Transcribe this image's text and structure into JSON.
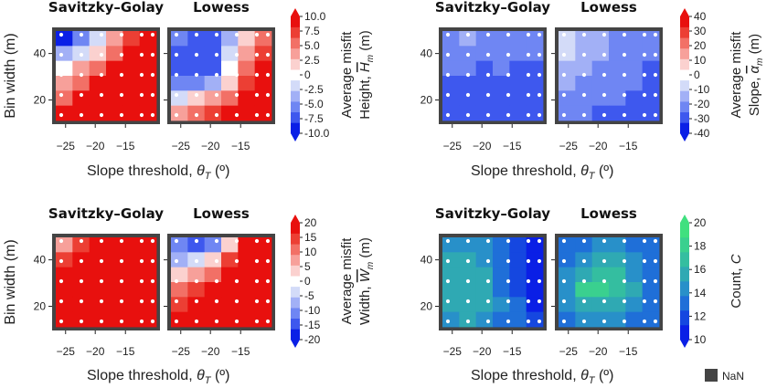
{
  "chart_data": [
    {
      "type": "heatmap",
      "row": "top",
      "column": "left",
      "quantity": "height",
      "panels": [
        {
          "title": "Savitzky–Golay",
          "grid": [
            [
              -9.5,
              -6,
              -2,
              3,
              7,
              10
            ],
            [
              -4,
              -2,
              2,
              6,
              9,
              10
            ],
            [
              -0.5,
              3,
              6,
              9,
              10,
              10
            ],
            [
              3,
              6,
              9,
              10,
              10,
              10
            ],
            [
              6,
              9,
              10,
              10,
              10,
              10
            ],
            [
              9,
              10,
              10,
              10,
              10,
              10
            ]
          ]
        },
        {
          "title": "Lowess",
          "grid": [
            [
              -6,
              -8,
              -8,
              -4,
              1,
              6
            ],
            [
              -7,
              -8,
              -8,
              -2,
              3,
              8
            ],
            [
              -7,
              -8,
              -8,
              0,
              5,
              9
            ],
            [
              -5,
              -6,
              -4,
              2,
              7,
              10
            ],
            [
              -2,
              1,
              3,
              6,
              9,
              10
            ],
            [
              3,
              6,
              8,
              10,
              10,
              10
            ]
          ]
        }
      ],
      "x_ticks": [
        "−25",
        "−20",
        "−15"
      ],
      "y_ticks": [
        "40",
        "20"
      ],
      "xlabel_pre": "Slope threshold, ",
      "xlabel_var": "θ",
      "xlabel_sub": "T",
      "xlabel_post": " (º)",
      "ylabel": "Bin width (m)",
      "colorbar": {
        "ticks": [
          "10.0",
          "7.5",
          "5.0",
          "2.5",
          "0",
          "-2.5",
          "-5.0",
          "-7.5",
          "-10.0"
        ],
        "label_line1": "Average misfit",
        "label_line2_pre": "Height, ",
        "label_line2_var": "H",
        "label_line2_sub": "m",
        "label_line2_post": " (m)",
        "vmin": -10,
        "vmax": 10,
        "colors": [
          "#0a1fe6",
          "#3e58ee",
          "#6f86f3",
          "#a2b0f6",
          "#d3dbf8",
          "#ffffff",
          "#fbd1cf",
          "#f7a09a",
          "#f27066",
          "#ec3f34",
          "#e8100e"
        ]
      }
    },
    {
      "type": "heatmap",
      "row": "top",
      "column": "right",
      "quantity": "slope",
      "panels": [
        {
          "title": "Savitzky–Golay",
          "grid": [
            [
              -22,
              -18,
              -20,
              -20,
              -22,
              -22
            ],
            [
              -24,
              -20,
              -20,
              -22,
              -22,
              -24
            ],
            [
              -24,
              -24,
              -26,
              -24,
              -26,
              -26
            ],
            [
              -26,
              -26,
              -28,
              -26,
              -28,
              -28
            ],
            [
              -28,
              -28,
              -30,
              -30,
              -30,
              -30
            ],
            [
              -28,
              -30,
              -30,
              -32,
              -32,
              -32
            ]
          ]
        },
        {
          "title": "Lowess",
          "grid": [
            [
              -8,
              -14,
              -18,
              -20,
              -22,
              -24
            ],
            [
              -10,
              -14,
              -18,
              -22,
              -24,
              -24
            ],
            [
              -14,
              -18,
              -20,
              -22,
              -24,
              -26
            ],
            [
              -18,
              -20,
              -22,
              -24,
              -24,
              -26
            ],
            [
              -20,
              -22,
              -24,
              -24,
              -26,
              -28
            ],
            [
              -22,
              -24,
              -26,
              -26,
              -28,
              -28
            ]
          ]
        }
      ],
      "x_ticks": [
        "−25",
        "−20",
        "−15"
      ],
      "y_ticks": [
        "40",
        "20"
      ],
      "xlabel_pre": "Slope threshold, ",
      "xlabel_var": "θ",
      "xlabel_sub": "T",
      "xlabel_post": " (º)",
      "colorbar": {
        "ticks": [
          "40",
          "30",
          "20",
          "10",
          "0",
          "-10",
          "-20",
          "-30",
          "-40"
        ],
        "label_line1": "Average misfit",
        "label_line2_pre": "Slope, ",
        "label_line2_var": "α",
        "label_line2_sub": "m",
        "label_line2_post": " (m)",
        "vmin": -40,
        "vmax": 40,
        "colors": [
          "#0a1fe6",
          "#3e58ee",
          "#6f86f3",
          "#a2b0f6",
          "#d3dbf8",
          "#ffffff",
          "#fbd1cf",
          "#f7a09a",
          "#f27066",
          "#ec3f34",
          "#e8100e"
        ]
      }
    },
    {
      "type": "heatmap",
      "row": "bottom",
      "column": "left",
      "quantity": "width",
      "panels": [
        {
          "title": "Savitzky–Golay",
          "grid": [
            [
              8,
              14,
              18,
              20,
              20,
              20
            ],
            [
              14,
              19,
              20,
              20,
              20,
              20
            ],
            [
              18,
              20,
              20,
              20,
              20,
              20
            ],
            [
              20,
              20,
              20,
              20,
              20,
              20
            ],
            [
              20,
              20,
              20,
              20,
              20,
              20
            ],
            [
              20,
              20,
              20,
              20,
              20,
              20
            ]
          ]
        },
        {
          "title": "Lowess",
          "grid": [
            [
              -12,
              -15,
              -12,
              5,
              18,
              20
            ],
            [
              -6,
              -4,
              2,
              16,
              20,
              20
            ],
            [
              2,
              8,
              12,
              19,
              20,
              20
            ],
            [
              10,
              14,
              17,
              20,
              20,
              20
            ],
            [
              16,
              18,
              20,
              20,
              20,
              20
            ],
            [
              20,
              20,
              20,
              20,
              20,
              20
            ]
          ]
        }
      ],
      "x_ticks": [
        "−25",
        "−20",
        "−15"
      ],
      "y_ticks": [
        "40",
        "20"
      ],
      "xlabel_pre": "Slope threshold, ",
      "xlabel_var": "θ",
      "xlabel_sub": "T",
      "xlabel_post": " (º)",
      "ylabel": "Bin width (m)",
      "colorbar": {
        "ticks": [
          "20",
          "15",
          "10",
          "5",
          "0",
          "-5",
          "-10",
          "-15",
          "-20"
        ],
        "label_line1": "Average misfit",
        "label_line2_pre": "Width, ",
        "label_line2_var": "W",
        "label_line2_sub": "m",
        "label_line2_post": " (m)",
        "vmin": -20,
        "vmax": 20,
        "colors": [
          "#0a1fe6",
          "#3e58ee",
          "#6f86f3",
          "#a2b0f6",
          "#d3dbf8",
          "#ffffff",
          "#fbd1cf",
          "#f7a09a",
          "#f27066",
          "#ec3f34",
          "#e8100e"
        ]
      }
    },
    {
      "type": "heatmap",
      "row": "bottom",
      "column": "right",
      "quantity": "count",
      "panels": [
        {
          "title": "Savitzky–Golay",
          "grid": [
            [
              14,
              14.5,
              14,
              13,
              12,
              11
            ],
            [
              15,
              15.5,
              14.5,
              13,
              11.5,
              10.5
            ],
            [
              15.5,
              16,
              15,
              13,
              11.5,
              10.5
            ],
            [
              15.5,
              16,
              15,
              13.5,
              12,
              11
            ],
            [
              15,
              15.5,
              15,
              14,
              12.5,
              11
            ],
            [
              14.5,
              15,
              14.5,
              13.5,
              12.5,
              11.5
            ]
          ]
        },
        {
          "title": "Lowess",
          "grid": [
            [
              13,
              13.5,
              14,
              14.5,
              13.5,
              12.5
            ],
            [
              13.5,
              14.5,
              15,
              15.5,
              14,
              13
            ],
            [
              14,
              15.5,
              17,
              16.5,
              14.5,
              13
            ],
            [
              14.5,
              17.5,
              18.5,
              17,
              15,
              13.5
            ],
            [
              14,
              15.5,
              16,
              15.5,
              14.5,
              13
            ],
            [
              13.5,
              14,
              14.5,
              14,
              13.5,
              12.5
            ]
          ]
        }
      ],
      "x_ticks": [
        "−25",
        "−20",
        "−15"
      ],
      "y_ticks": [
        "40",
        "20"
      ],
      "xlabel_pre": "Slope threshold, ",
      "xlabel_var": "θ",
      "xlabel_sub": "T",
      "xlabel_post": " (º)",
      "colorbar": {
        "ticks": [
          "20",
          "18",
          "16",
          "14",
          "12",
          "10"
        ],
        "label_line1": "Count, ",
        "label_line1_var": "C",
        "vmin": 10,
        "vmax": 20,
        "colors": [
          "#0a1fe6",
          "#1547e0",
          "#1f6fd8",
          "#2890c9",
          "#2fa9b3",
          "#34bea0",
          "#3ad08f",
          "#40e07f"
        ]
      }
    }
  ],
  "legend": {
    "nan_label": "NaN",
    "nan_color": "#444444"
  }
}
